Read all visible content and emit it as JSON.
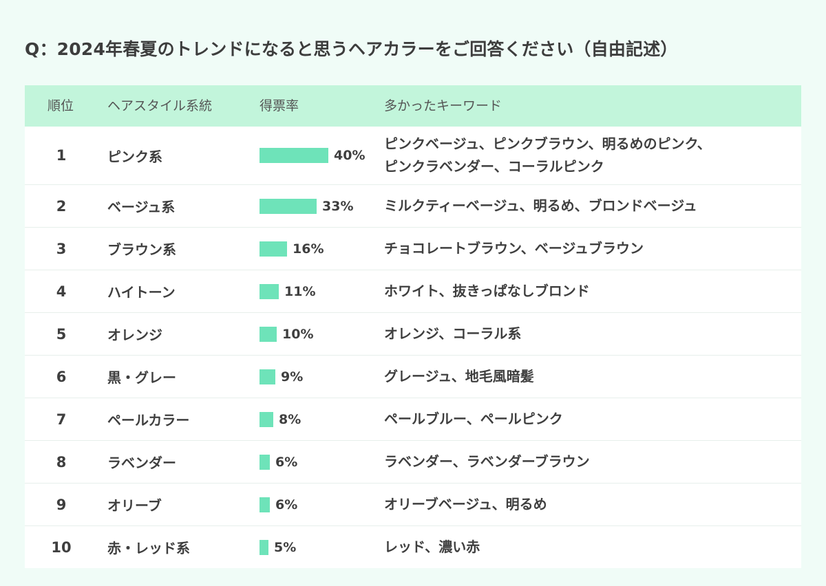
{
  "title": "Q：2024年春夏のトレンドになると思うヘアカラーをご回答ください（自由記述）",
  "colors": {
    "header_bg": "#c2f5db",
    "bar": "#6ee3b9",
    "page_bg": "#f0fcf7"
  },
  "headers": {
    "rank": "順位",
    "style": "ヘアスタイル系統",
    "rate": "得票率",
    "keywords": "多かったキーワード"
  },
  "chart_data": {
    "type": "table",
    "columns": [
      "順位",
      "ヘアスタイル系統",
      "得票率",
      "多かったキーワード"
    ],
    "value_unit": "%",
    "rows": [
      {
        "rank": "1",
        "style": "ピンク系",
        "value": 40,
        "label": "40%",
        "keywords": "ピンクベージュ、ピンクブラウン、明るめのピンク、\nピンクラベンダー、コーラルピンク"
      },
      {
        "rank": "2",
        "style": "ベージュ系",
        "value": 33,
        "label": "33%",
        "keywords": "ミルクティーベージュ、明るめ、ブロンドベージュ"
      },
      {
        "rank": "3",
        "style": "ブラウン系",
        "value": 16,
        "label": "16%",
        "keywords": "チョコレートブラウン、ベージュブラウン"
      },
      {
        "rank": "4",
        "style": "ハイトーン",
        "value": 11,
        "label": "11%",
        "keywords": "ホワイト、抜きっぱなしブロンド"
      },
      {
        "rank": "5",
        "style": "オレンジ",
        "value": 10,
        "label": "10%",
        "keywords": "オレンジ、コーラル系"
      },
      {
        "rank": "6",
        "style": "黒・グレー",
        "value": 9,
        "label": "9%",
        "keywords": "グレージュ、地毛風暗髪"
      },
      {
        "rank": "7",
        "style": "ペールカラー",
        "value": 8,
        "label": "8%",
        "keywords": "ペールブルー、ペールピンク"
      },
      {
        "rank": "8",
        "style": "ラベンダー",
        "value": 6,
        "label": "6%",
        "keywords": "ラベンダー、ラベンダーブラウン"
      },
      {
        "rank": "9",
        "style": "オリーブ",
        "value": 6,
        "label": "6%",
        "keywords": "オリーブベージュ、明るめ"
      },
      {
        "rank": "10",
        "style": "赤・レッド系",
        "value": 5,
        "label": "5%",
        "keywords": "レッド、濃い赤"
      }
    ]
  }
}
